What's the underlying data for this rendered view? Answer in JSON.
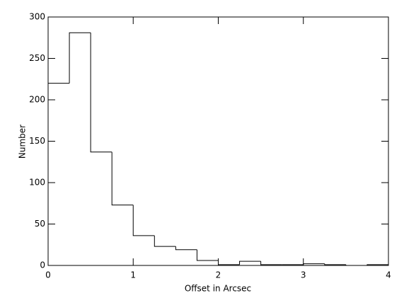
{
  "chart_data": {
    "type": "histogram",
    "x_label": "Offset in Arcsec",
    "y_label": "Number",
    "bins": [
      0,
      0.25,
      0.5,
      0.75,
      1,
      1.25,
      1.5,
      1.75,
      2,
      2.25,
      2.5,
      2.75,
      3,
      3.25,
      3.5,
      3.75,
      4
    ],
    "counts": [
      220,
      281,
      137,
      73,
      36,
      23,
      19,
      6,
      1,
      5,
      1,
      1,
      2,
      1,
      0,
      1
    ],
    "color": "#000000",
    "xlim": [
      0,
      4
    ],
    "xticks": [
      0,
      1,
      2,
      3,
      4
    ],
    "ylim": [
      0,
      300
    ],
    "yticks": [
      0,
      50,
      100,
      150,
      200,
      250,
      300
    ]
  }
}
